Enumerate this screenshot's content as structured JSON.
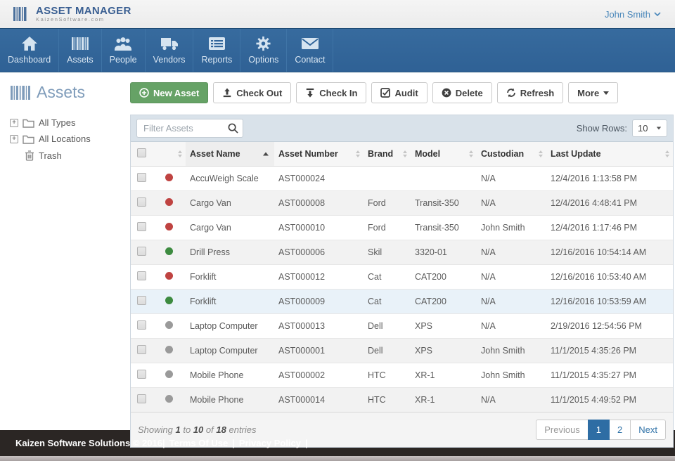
{
  "header": {
    "logo_title": "ASSET MANAGER",
    "logo_subtitle": "KaizenSoftware.com",
    "user_name": "John Smith"
  },
  "nav": {
    "items": [
      {
        "label": "Dashboard",
        "icon": "home-icon"
      },
      {
        "label": "Assets",
        "icon": "barcode-icon"
      },
      {
        "label": "People",
        "icon": "people-icon"
      },
      {
        "label": "Vendors",
        "icon": "truck-icon"
      },
      {
        "label": "Reports",
        "icon": "report-icon"
      },
      {
        "label": "Options",
        "icon": "gear-icon"
      },
      {
        "label": "Contact",
        "icon": "envelope-icon"
      }
    ]
  },
  "sidebar": {
    "title": "Assets",
    "tree": [
      {
        "label": "All Types",
        "icon": "folder-icon",
        "expander": "+"
      },
      {
        "label": "All Locations",
        "icon": "folder-icon",
        "expander": "+"
      },
      {
        "label": "Trash",
        "icon": "trash-icon"
      }
    ]
  },
  "toolbar": {
    "new_asset": "New Asset",
    "check_out": "Check Out",
    "check_in": "Check In",
    "audit": "Audit",
    "delete": "Delete",
    "refresh": "Refresh",
    "more": "More"
  },
  "filter_bar": {
    "placeholder": "Filter Assets",
    "show_rows_label": "Show Rows:",
    "show_rows_value": "10"
  },
  "table": {
    "columns": [
      "Asset Name",
      "Asset Number",
      "Brand",
      "Model",
      "Custodian",
      "Last Update"
    ],
    "sorted_column": "Asset Name",
    "sort_direction": "asc",
    "rows": [
      {
        "status": "red",
        "name": "AccuWeigh Scale",
        "number": "AST000024",
        "brand": "",
        "model": "",
        "custodian": "N/A",
        "updated": "12/4/2016 1:13:58 PM"
      },
      {
        "status": "red",
        "name": "Cargo Van",
        "number": "AST000008",
        "brand": "Ford",
        "model": "Transit-350",
        "custodian": "N/A",
        "updated": "12/4/2016 4:48:41 PM"
      },
      {
        "status": "red",
        "name": "Cargo Van",
        "number": "AST000010",
        "brand": "Ford",
        "model": "Transit-350",
        "custodian": "John Smith",
        "updated": "12/4/2016 1:17:46 PM"
      },
      {
        "status": "green",
        "name": "Drill Press",
        "number": "AST000006",
        "brand": "Skil",
        "model": "3320-01",
        "custodian": "N/A",
        "updated": "12/16/2016 10:54:14 AM"
      },
      {
        "status": "red",
        "name": "Forklift",
        "number": "AST000012",
        "brand": "Cat",
        "model": "CAT200",
        "custodian": "N/A",
        "updated": "12/16/2016 10:53:40 AM"
      },
      {
        "status": "green",
        "name": "Forklift",
        "number": "AST000009",
        "brand": "Cat",
        "model": "CAT200",
        "custodian": "N/A",
        "updated": "12/16/2016 10:53:59 AM",
        "highlight": true
      },
      {
        "status": "grey",
        "name": "Laptop Computer",
        "number": "AST000013",
        "brand": "Dell",
        "model": "XPS",
        "custodian": "N/A",
        "updated": "2/19/2016 12:54:56 PM"
      },
      {
        "status": "grey",
        "name": "Laptop Computer",
        "number": "AST000001",
        "brand": "Dell",
        "model": "XPS",
        "custodian": "John Smith",
        "updated": "11/1/2015 4:35:26 PM"
      },
      {
        "status": "grey",
        "name": "Mobile Phone",
        "number": "AST000002",
        "brand": "HTC",
        "model": "XR-1",
        "custodian": "John Smith",
        "updated": "11/1/2015 4:35:27 PM"
      },
      {
        "status": "grey",
        "name": "Mobile Phone",
        "number": "AST000014",
        "brand": "HTC",
        "model": "XR-1",
        "custodian": "N/A",
        "updated": "11/1/2015 4:49:52 PM"
      }
    ]
  },
  "pagination": {
    "showing_prefix": "Showing",
    "from": "1",
    "to_word": "to",
    "to": "10",
    "of_word": "of",
    "total": "18",
    "entries_word": "entries",
    "previous": "Previous",
    "pages": [
      "1",
      "2"
    ],
    "active_page": "1",
    "next": "Next"
  },
  "footer": {
    "copyright": "Kaizen Software Solutions © 2016|",
    "terms_link": "Terms Of Use",
    "separator": "|",
    "privacy_link": "Privacy Policy",
    "trailing": "|"
  },
  "colors": {
    "nav_blue": "#32669b",
    "accent_blue": "#2e6da4",
    "green_button": "#66a266",
    "status_red": "#bf4341",
    "status_green": "#3d8b40",
    "status_grey": "#9a9a9a",
    "row_highlight": "#e9f2f9"
  }
}
